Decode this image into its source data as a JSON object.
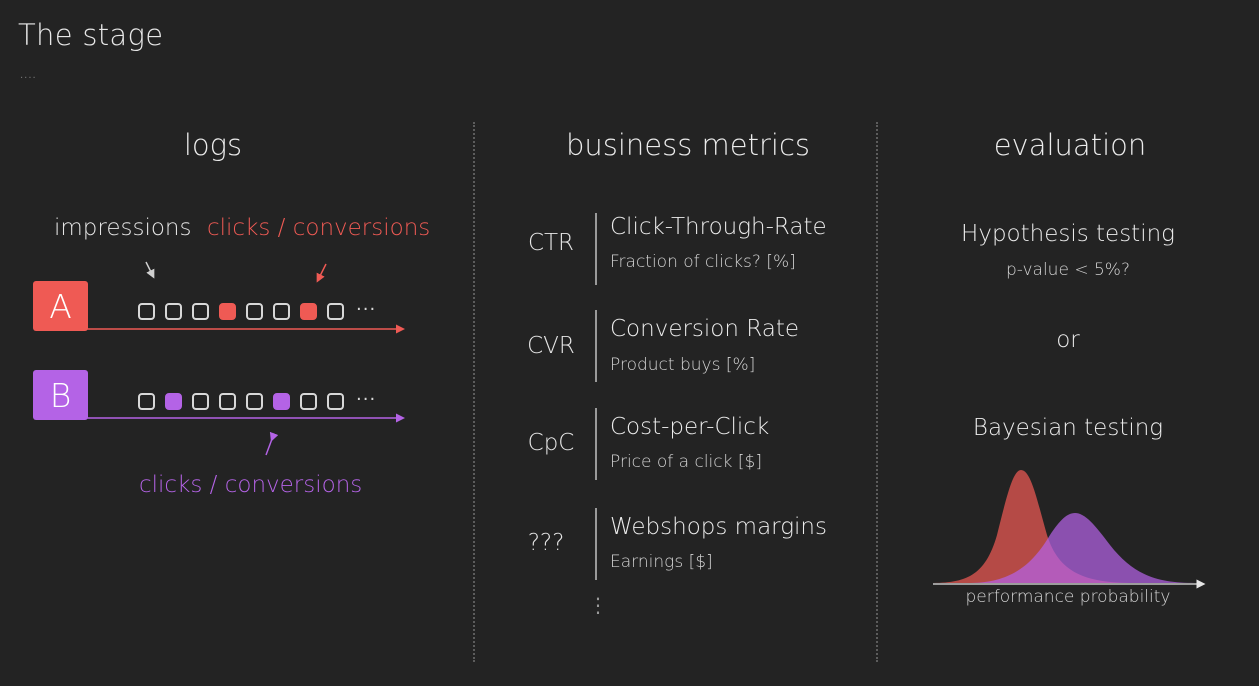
{
  "slide": {
    "title": "The stage",
    "subtitle_dots": "...."
  },
  "columns": {
    "logs": {
      "heading": "logs",
      "impressions_label": "impressions",
      "clicks_label_top": "clicks / conversions",
      "clicks_label_bottom": "clicks / conversions",
      "variant_a": {
        "letter": "A",
        "color": "#ef5a54",
        "events": [
          0,
          0,
          0,
          1,
          0,
          0,
          1,
          0
        ]
      },
      "variant_b": {
        "letter": "B",
        "color": "#b463e6",
        "events": [
          0,
          1,
          0,
          0,
          0,
          1,
          0,
          0
        ]
      },
      "ellipsis": "···"
    },
    "metrics": {
      "heading": "business metrics",
      "items": [
        {
          "abbr": "CTR",
          "name": "Click-Through-Rate",
          "desc": "Fraction of clicks? [%]"
        },
        {
          "abbr": "CVR",
          "name": "Conversion Rate",
          "desc": "Product buys [%]"
        },
        {
          "abbr": "CpC",
          "name": "Cost-per-Click",
          "desc": "Price of a click [$]"
        },
        {
          "abbr": "???",
          "name": "Webshops margins",
          "desc": "Earnings [$]"
        }
      ],
      "more": "⋮"
    },
    "evaluation": {
      "heading": "evaluation",
      "hypothesis": "Hypothesis testing",
      "pvalue": "p-value < 5%?",
      "or": "or",
      "bayesian": "Bayesian testing",
      "axis_label": "performance probability"
    }
  },
  "colors": {
    "background": "#232323",
    "red": "#ef5a54",
    "purple": "#b463e6"
  }
}
